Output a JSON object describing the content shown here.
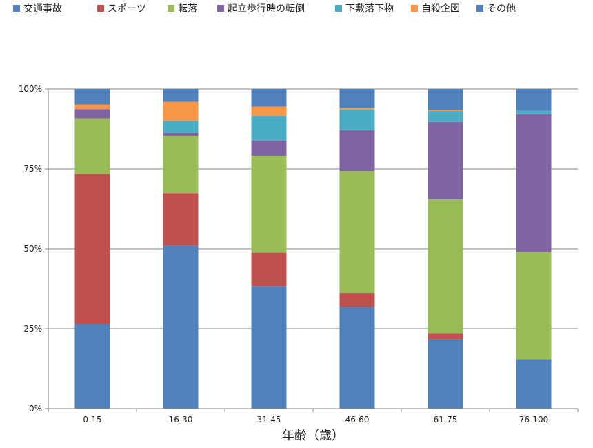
{
  "chart_data": {
    "type": "bar",
    "stacked": true,
    "percent": true,
    "xlabel": "年齢（歳）",
    "ylabel": "",
    "ylim": [
      0,
      100
    ],
    "yticks": [
      "0%",
      "25%",
      "50%",
      "75%",
      "100%"
    ],
    "grid": true,
    "legend_position": "top",
    "categories": [
      "0-15",
      "16-30",
      "31-45",
      "46-60",
      "61-75",
      "76-100"
    ],
    "series": [
      {
        "name": "交通事故",
        "color": "#4f81bd",
        "values": [
          26.5,
          51.0,
          38.3,
          31.8,
          21.6,
          15.4
        ]
      },
      {
        "name": "スポーツ",
        "color": "#c0504d",
        "values": [
          46.9,
          16.4,
          10.5,
          4.4,
          2.0,
          0.0
        ]
      },
      {
        "name": "転落",
        "color": "#9bbb59",
        "values": [
          17.4,
          17.9,
          30.3,
          38.1,
          41.9,
          33.6
        ]
      },
      {
        "name": "起立歩行時の転倒",
        "color": "#8064a2",
        "values": [
          2.9,
          0.9,
          4.8,
          12.8,
          24.2,
          43.1
        ]
      },
      {
        "name": "下敷落下物",
        "color": "#4bacc6",
        "values": [
          0.0,
          3.7,
          7.6,
          6.5,
          3.4,
          1.1
        ]
      },
      {
        "name": "自殺企図",
        "color": "#f79646",
        "values": [
          1.4,
          6.1,
          3.0,
          0.5,
          0.2,
          0.0
        ]
      },
      {
        "name": "その他",
        "color": "#4f81bd",
        "values": [
          4.9,
          4.0,
          5.5,
          5.9,
          6.7,
          6.8
        ]
      }
    ]
  }
}
